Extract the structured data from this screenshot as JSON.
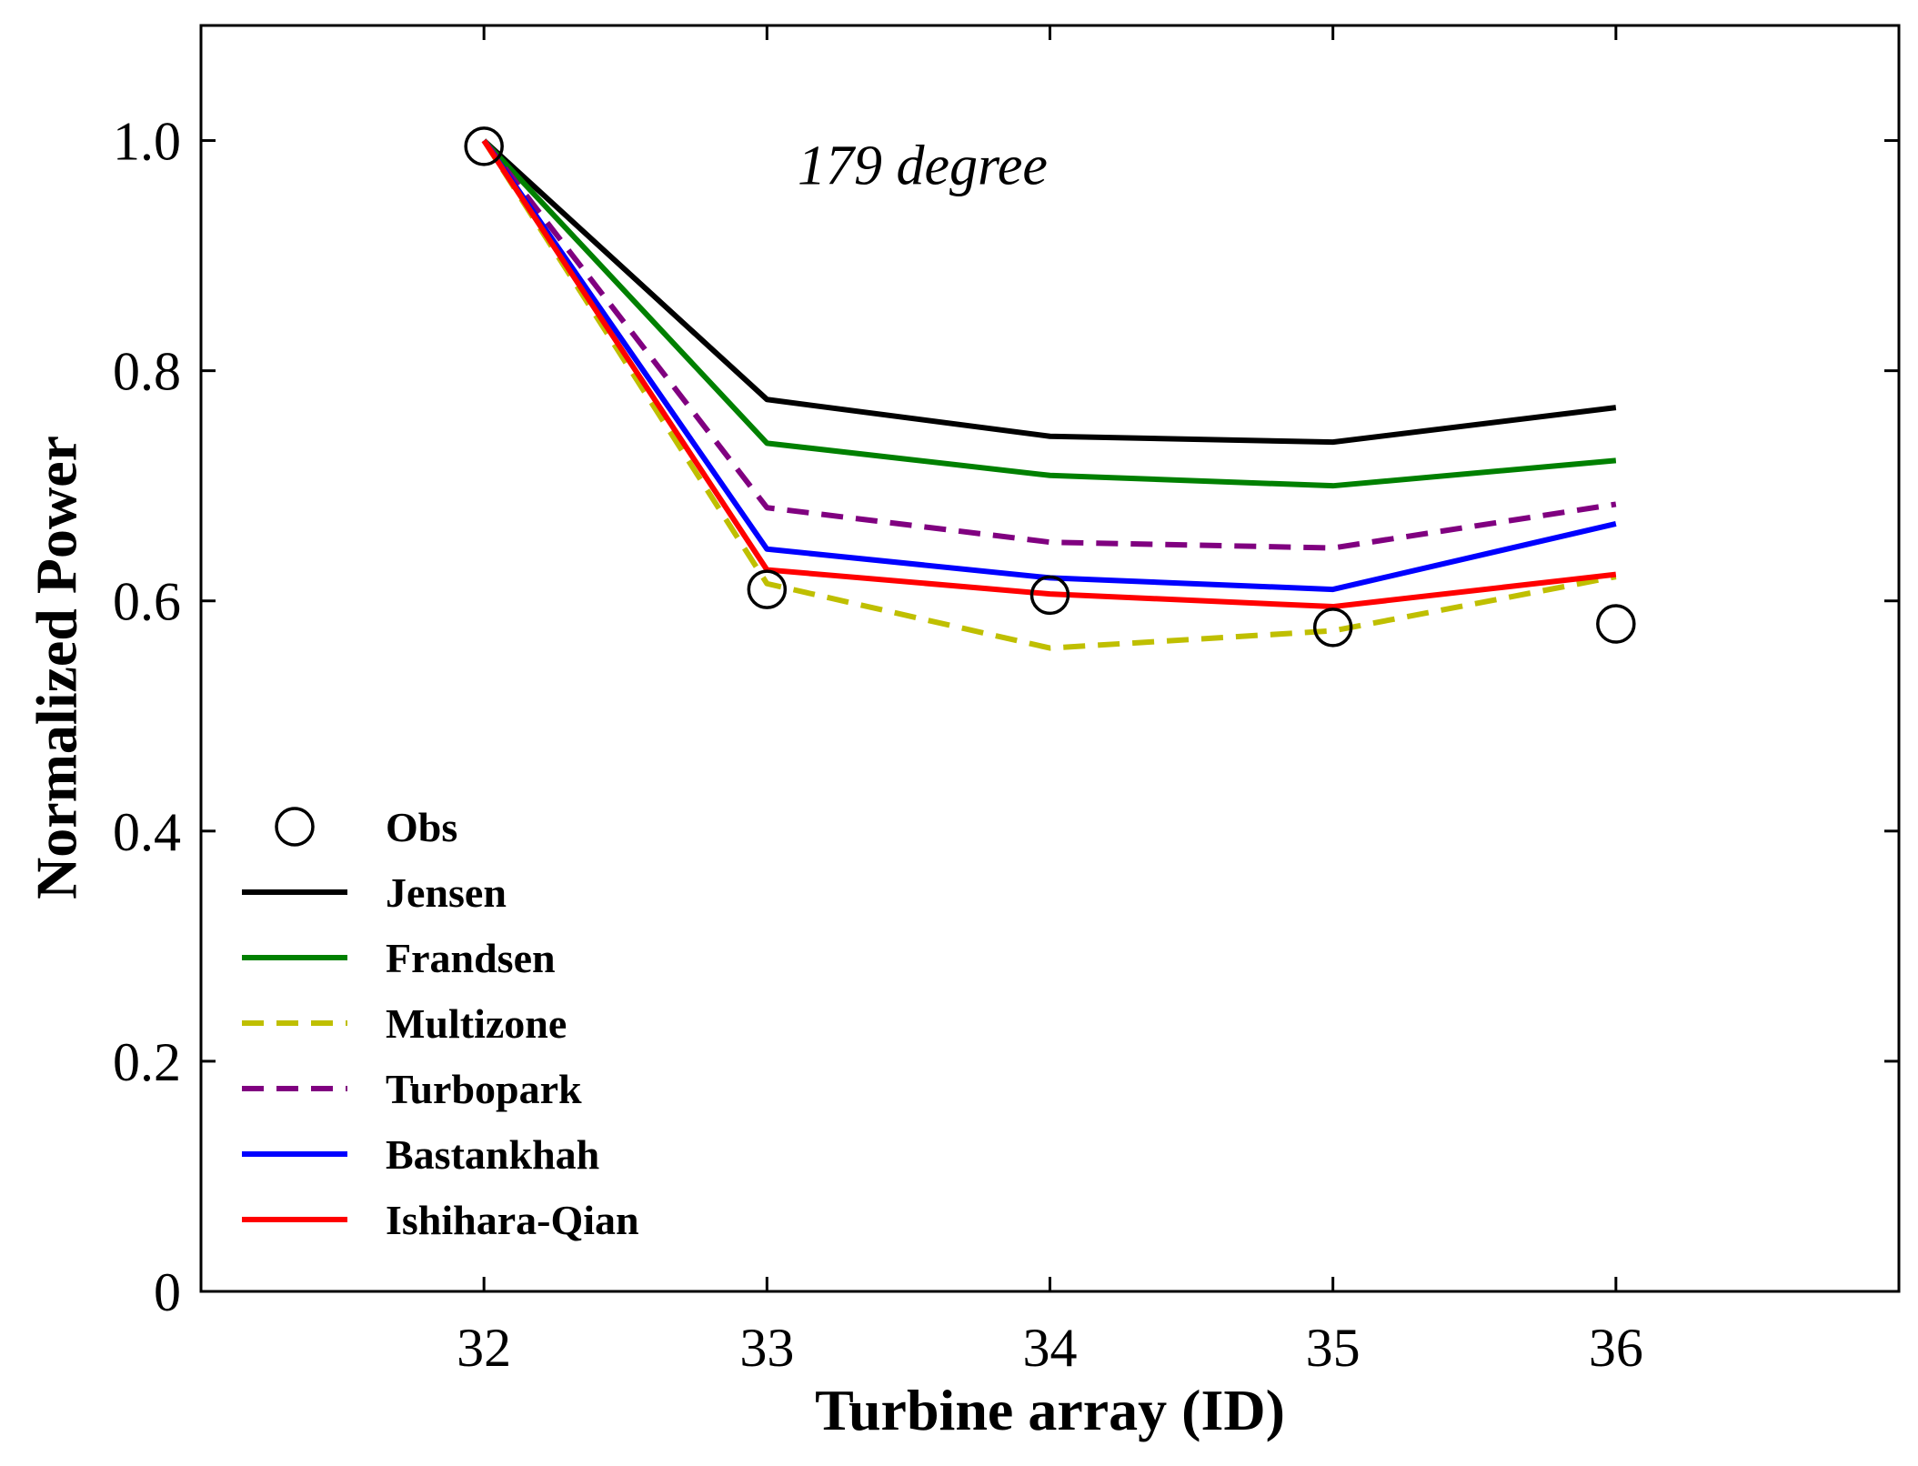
{
  "chart_data": {
    "type": "line",
    "xlabel": "Turbine array (ID)",
    "ylabel": "Normalized Power",
    "annotation": "179 degree",
    "x": [
      32,
      33,
      34,
      35,
      36
    ],
    "x_tick_labels": [
      "32",
      "33",
      "34",
      "35",
      "36"
    ],
    "xlim": [
      31,
      37
    ],
    "ylim": [
      0,
      1.1
    ],
    "y_ticks": [
      0,
      0.2,
      0.4,
      0.6,
      0.8,
      1.0
    ],
    "y_tick_labels": [
      "0",
      "0.2",
      "0.4",
      "0.6",
      "0.8",
      "1.0"
    ],
    "grid": false,
    "legend_position": "lower-left",
    "observations": {
      "name": "Obs",
      "color": "#000000",
      "marker": "open-circle",
      "values": [
        0.995,
        0.61,
        0.605,
        0.577,
        0.58
      ]
    },
    "series": [
      {
        "name": "Jensen",
        "color": "#000000",
        "style": "solid",
        "values": [
          1.0,
          0.775,
          0.743,
          0.738,
          0.768
        ]
      },
      {
        "name": "Frandsen",
        "color": "#008000",
        "style": "solid",
        "values": [
          1.0,
          0.737,
          0.709,
          0.7,
          0.722
        ]
      },
      {
        "name": "Multizone",
        "color": "#bfbf00",
        "style": "dashed",
        "values": [
          1.0,
          0.615,
          0.559,
          0.574,
          0.621
        ]
      },
      {
        "name": "Turbopark",
        "color": "#800080",
        "style": "dashed",
        "values": [
          1.0,
          0.681,
          0.651,
          0.646,
          0.684
        ]
      },
      {
        "name": "Bastankhah",
        "color": "#0000ff",
        "style": "solid",
        "values": [
          1.0,
          0.645,
          0.62,
          0.61,
          0.667
        ]
      },
      {
        "name": "Ishihara-Qian",
        "color": "#ff0000",
        "style": "solid",
        "values": [
          1.0,
          0.627,
          0.606,
          0.595,
          0.623
        ]
      }
    ]
  }
}
